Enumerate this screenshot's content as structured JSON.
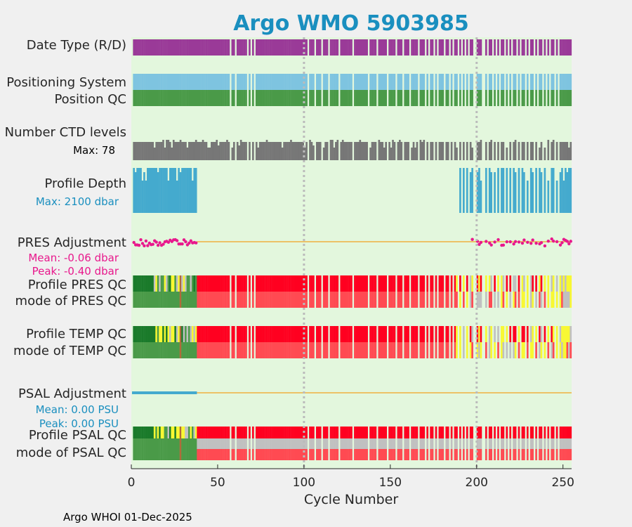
{
  "chart_data": {
    "type": "bar",
    "title": "Argo WMO 5903985",
    "xlabel": "Cycle Number",
    "xlim": [
      0,
      255
    ],
    "xticks": [
      0,
      50,
      100,
      150,
      200,
      250
    ],
    "grid_x": [
      100,
      200
    ],
    "footer": "Argo WHOI 01-Dec-2025",
    "data_cycles": 37,
    "missing_cycles": [
      57,
      60,
      67,
      69,
      71,
      102,
      106,
      110,
      114,
      120,
      128,
      137,
      142,
      148,
      153,
      157,
      161,
      166,
      170,
      172,
      175,
      177,
      181,
      184,
      186,
      189,
      191,
      193,
      195,
      198,
      199,
      203,
      204,
      206,
      209,
      211,
      213,
      216,
      218,
      220,
      223,
      225,
      228,
      230,
      233,
      235,
      238,
      240,
      242,
      245,
      247
    ],
    "rows": [
      {
        "label": "Date Type (R/D)",
        "color": "#9a3a98"
      },
      {
        "label": "Positioning System",
        "color": "#7ec4e0"
      },
      {
        "label": "Position QC",
        "color": "#4a9a48"
      },
      {
        "label": "Number CTD levels",
        "sublabel": "Max: 78",
        "color": "#777777",
        "max": 78
      },
      {
        "label": "Profile Depth",
        "sublabel": "Max: 2100 dbar",
        "color": "#44aace",
        "max_dbar": 2100
      },
      {
        "label": "PRES Adjustment",
        "sublabel": [
          "Mean: -0.06 dbar",
          "Peak: -0.40 dbar"
        ],
        "mean": -0.06,
        "peak": -0.4,
        "color": "#e8188c"
      },
      {
        "label": "Profile PRES QC",
        "color": "#ff0020"
      },
      {
        "label": "mode of PRES QC",
        "color": "#ff4a52"
      },
      {
        "label": "Profile TEMP QC",
        "color": "#ff0020"
      },
      {
        "label": "mode of TEMP QC",
        "color": "#ff4a52"
      },
      {
        "label": "PSAL Adjustment",
        "sublabel": [
          "Mean: 0.00 PSU",
          "Peak: 0.00 PSU"
        ],
        "mean": 0.0,
        "peak": 0.0,
        "color": "#44aace"
      },
      {
        "label": "Profile PSAL QC",
        "color": "#ff0020"
      },
      {
        "label": "mode of PSAL QC",
        "color": "#ff4a52"
      }
    ],
    "colors": {
      "plot_bg": "#e3f7dd",
      "grid": "#bbbbbb",
      "adj_line": "#f0b040",
      "dark_green": "#1a7a2a",
      "qc_green": "#4a9a48",
      "yellow": "#f8f832",
      "gray": "#c0c0c0",
      "brown": "#b06a3a",
      "sub_blue": "#1a8fbf",
      "sub_pink": "#e8188c",
      "title": "#1a8fbf"
    }
  }
}
